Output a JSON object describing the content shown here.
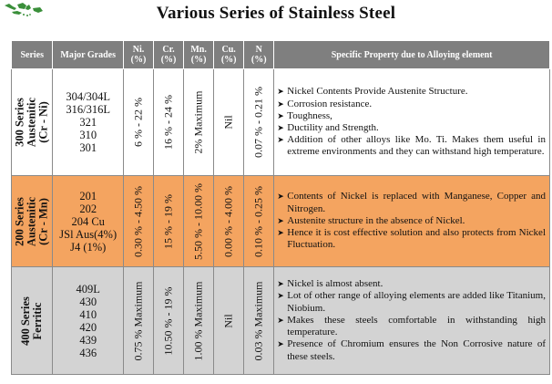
{
  "title": "Various Series of Stainless Steel",
  "logo": {
    "icon": "indonesia-map-logo",
    "color": "#3a8f3a"
  },
  "colors": {
    "header_bg": "#7f7f7f",
    "row_300_bg": "#ffffff",
    "row_200_bg": "#f4a460",
    "row_400_bg": "#d3d3d3"
  },
  "headers": {
    "series": "Series",
    "grades": "Major Grades",
    "ni": [
      "Ni.",
      "(%)"
    ],
    "cr": [
      "Cr.",
      "(%)"
    ],
    "mn": [
      "Mn.",
      "(%)"
    ],
    "cu": [
      "Cu.",
      "(%)"
    ],
    "n": [
      "N",
      "(%)"
    ],
    "property": "Specific Property due to Alloying element"
  },
  "rows": [
    {
      "series": [
        "300 Series",
        "Austenitic",
        "(Cr - Ni)"
      ],
      "grades": [
        "304/304L",
        "316/316L",
        "321",
        "310",
        "301"
      ],
      "ni": "6 % - 22 %",
      "cr": "16 % - 24 %",
      "mn": "2% Maximum",
      "cu": "Nil",
      "n": "0.07 % - 0.21 %",
      "properties": [
        "Nickel Contents Provide Austenite Structure.",
        "Corrosion resistance.",
        "Toughness,",
        "Ductility and Strength.",
        "Addition of other alloys like Mo. Ti. Makes them useful in extreme environments and they can withstand high temperature."
      ]
    },
    {
      "series": [
        "200 Series",
        "Austenitic",
        "(Cr - Mn)"
      ],
      "grades": [
        "201",
        "202",
        "204 Cu",
        "JSl Aus(4%)",
        "J4 (1%)"
      ],
      "ni": "0.30 % - 4.50 %",
      "cr": "15 % - 19 %",
      "mn": "5.50 % - 10.00 %",
      "cu": "0.00 % - 4.00 %",
      "n": "0.10 % - 0.25 %",
      "properties": [
        "Contents of Nickel is replaced with Manganese, Copper and Nitrogen.",
        "Austenite structure in the absence of Nickel.",
        "Hence it is cost effective solution and also protects from Nickel Fluctuation."
      ]
    },
    {
      "series": [
        "400 Series",
        "Ferritic"
      ],
      "grades": [
        "409L",
        "430",
        "410",
        "420",
        "439",
        "436"
      ],
      "ni": "0.75 % Maximum",
      "cr": "10.50 % - 19 %",
      "mn": "1.00 % Maximum",
      "cu": "Nil",
      "n": "0.03 % Maximum",
      "properties": [
        "Nickel is almost absent.",
        "Lot of other range of alloying elements are added like Titanium, Niobium.",
        "Makes these steels comfortable in withstanding high temperature.",
        "Presence of Chromium ensures the Non Corrosive nature of these steels."
      ]
    }
  ]
}
